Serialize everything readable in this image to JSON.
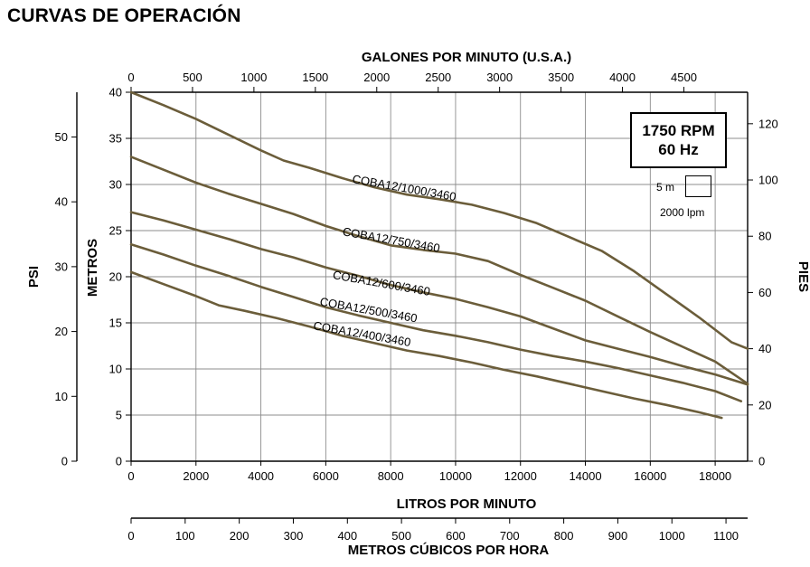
{
  "page_title": "CURVAS DE OPERACIÓN",
  "rpm_label": "1750 RPM",
  "hz_label": "60 Hz",
  "scale_legend": {
    "head": "5 m",
    "flow": "2000 lpm"
  },
  "colors": {
    "curve": "#6b5d3a",
    "grid": "#8c8c8c",
    "axis": "#000000"
  },
  "chart_data": {
    "type": "line",
    "title": "CURVAS DE OPERACIÓN",
    "x": {
      "label": "LITROS POR MINUTO",
      "range": [
        0,
        19000
      ],
      "ticks": [
        0,
        2000,
        4000,
        6000,
        8000,
        10000,
        12000,
        14000,
        16000,
        18000
      ]
    },
    "x_top": {
      "label": "GALONES POR MINUTO (U.S.A.)",
      "range": [
        0,
        5019
      ],
      "ticks": [
        0,
        500,
        1000,
        1500,
        2000,
        2500,
        3000,
        3500,
        4000,
        4500
      ]
    },
    "x_bottom2": {
      "label": "METROS CÚBICOS POR HORA",
      "range": [
        0,
        1140
      ],
      "ticks": [
        0,
        100,
        200,
        300,
        400,
        500,
        600,
        700,
        800,
        900,
        1000,
        1100
      ]
    },
    "y": {
      "label": "METROS",
      "range": [
        0,
        40
      ],
      "ticks": [
        0,
        5,
        10,
        15,
        20,
        25,
        30,
        35,
        40
      ]
    },
    "y_left2": {
      "label": "PSI",
      "range": [
        0,
        56.9
      ],
      "ticks": [
        0,
        10,
        20,
        30,
        40,
        50
      ]
    },
    "y_right": {
      "label": "PIES",
      "range": [
        0,
        131.2
      ],
      "ticks": [
        0,
        20,
        40,
        60,
        80,
        100,
        120
      ]
    },
    "grid": true,
    "series": [
      {
        "name": "COBA12/1000/3460",
        "label_at": [
          6800,
          30.2,
          -10
        ],
        "points": [
          [
            0,
            40
          ],
          [
            1000,
            38.6
          ],
          [
            2000,
            37.1
          ],
          [
            3000,
            35.4
          ],
          [
            4000,
            33.7
          ],
          [
            4700,
            32.6
          ],
          [
            5500,
            31.8
          ],
          [
            6500,
            30.7
          ],
          [
            7500,
            29.7
          ],
          [
            8500,
            28.9
          ],
          [
            9500,
            28.4
          ],
          [
            10500,
            27.8
          ],
          [
            11500,
            26.9
          ],
          [
            12500,
            25.8
          ],
          [
            13500,
            24.3
          ],
          [
            14500,
            22.8
          ],
          [
            15500,
            20.6
          ],
          [
            16500,
            18.1
          ],
          [
            17500,
            15.6
          ],
          [
            18500,
            12.9
          ],
          [
            19000,
            12.2
          ]
        ]
      },
      {
        "name": "COBA12/750/3460",
        "label_at": [
          6500,
          24.5,
          -10
        ],
        "points": [
          [
            0,
            33
          ],
          [
            1000,
            31.6
          ],
          [
            2000,
            30.2
          ],
          [
            3000,
            29.0
          ],
          [
            4000,
            27.9
          ],
          [
            5000,
            26.8
          ],
          [
            6000,
            25.5
          ],
          [
            7000,
            24.4
          ],
          [
            8000,
            23.4
          ],
          [
            9000,
            22.9
          ],
          [
            10000,
            22.5
          ],
          [
            11000,
            21.7
          ],
          [
            12000,
            20.2
          ],
          [
            13000,
            18.8
          ],
          [
            14000,
            17.4
          ],
          [
            15000,
            15.7
          ],
          [
            16000,
            14.0
          ],
          [
            17000,
            12.4
          ],
          [
            18000,
            10.8
          ],
          [
            19000,
            8.4
          ]
        ]
      },
      {
        "name": "COBA12/600/3460",
        "label_at": [
          6200,
          19.8,
          -10
        ],
        "points": [
          [
            0,
            27
          ],
          [
            1000,
            26.1
          ],
          [
            2000,
            25.1
          ],
          [
            3000,
            24.1
          ],
          [
            4000,
            23.0
          ],
          [
            5000,
            22.1
          ],
          [
            6000,
            21.0
          ],
          [
            7000,
            20.1
          ],
          [
            8000,
            19.1
          ],
          [
            9000,
            18.3
          ],
          [
            10000,
            17.6
          ],
          [
            11000,
            16.7
          ],
          [
            12000,
            15.7
          ],
          [
            13000,
            14.4
          ],
          [
            14000,
            13.1
          ],
          [
            15000,
            12.2
          ],
          [
            16000,
            11.3
          ],
          [
            17000,
            10.3
          ],
          [
            18000,
            9.4
          ],
          [
            19000,
            8.3
          ]
        ]
      },
      {
        "name": "COBA12/500/3460",
        "label_at": [
          5800,
          16.9,
          -10
        ],
        "points": [
          [
            0,
            23.5
          ],
          [
            1000,
            22.4
          ],
          [
            2000,
            21.2
          ],
          [
            3000,
            20.1
          ],
          [
            4000,
            18.9
          ],
          [
            5000,
            17.8
          ],
          [
            6000,
            16.7
          ],
          [
            7000,
            15.8
          ],
          [
            8000,
            15.0
          ],
          [
            9000,
            14.2
          ],
          [
            10000,
            13.6
          ],
          [
            11000,
            12.9
          ],
          [
            12000,
            12.1
          ],
          [
            13000,
            11.4
          ],
          [
            14000,
            10.8
          ],
          [
            15000,
            10.1
          ],
          [
            16000,
            9.3
          ],
          [
            17000,
            8.5
          ],
          [
            18000,
            7.6
          ],
          [
            18800,
            6.5
          ]
        ]
      },
      {
        "name": "COBA12/400/3460",
        "label_at": [
          5600,
          14.3,
          -10
        ],
        "points": [
          [
            0,
            20.5
          ],
          [
            1000,
            19.2
          ],
          [
            2000,
            17.9
          ],
          [
            2700,
            16.9
          ],
          [
            3500,
            16.3
          ],
          [
            4500,
            15.5
          ],
          [
            5500,
            14.6
          ],
          [
            6500,
            13.6
          ],
          [
            7500,
            12.8
          ],
          [
            8500,
            12.0
          ],
          [
            9500,
            11.4
          ],
          [
            10500,
            10.7
          ],
          [
            11500,
            9.9
          ],
          [
            12500,
            9.2
          ],
          [
            13500,
            8.4
          ],
          [
            14500,
            7.6
          ],
          [
            15500,
            6.8
          ],
          [
            16500,
            6.1
          ],
          [
            17500,
            5.3
          ],
          [
            18200,
            4.7
          ]
        ]
      }
    ]
  }
}
